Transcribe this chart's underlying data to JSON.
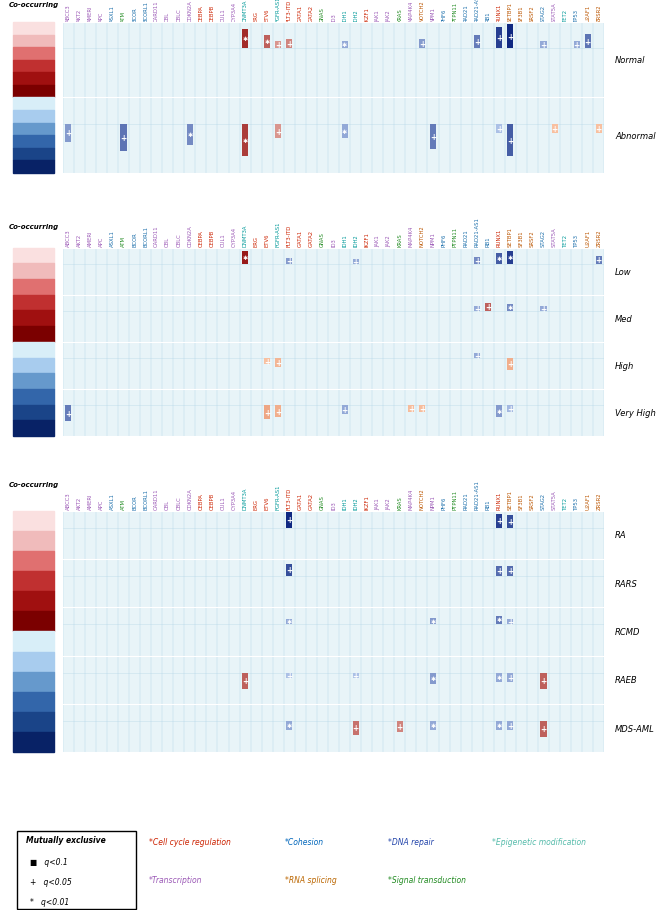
{
  "genes": [
    "ABCC3",
    "AKT2",
    "AMERI",
    "APC",
    "ASXL1",
    "ATM",
    "BCOR",
    "BCORL1",
    "CARD11",
    "CBL",
    "CBLC",
    "CDKN2A",
    "CEBPA",
    "CEBPB",
    "CUL1",
    "CYP3A4",
    "DNMT3A",
    "ERG",
    "ETV6",
    "FGFR-AS1",
    "FLT3-ITD",
    "GATA1",
    "GATA2",
    "GNAS",
    "ID3",
    "IDH1",
    "IDH2",
    "IKZF1",
    "JAK1",
    "JAK2",
    "KRAS",
    "MAP4K4",
    "NOTCH2",
    "NPM1",
    "PHF6",
    "PTPN11",
    "RAD21",
    "RAD21-AS1",
    "RB1",
    "RUNX1",
    "SETBP1",
    "SF3B1",
    "SRSF2",
    "STAG2",
    "STAT5A",
    "TET2",
    "TP53",
    "U2AF1",
    "ZRSR2"
  ],
  "gene_colors": [
    "#9B59B6",
    "#9B59B6",
    "#9B59B6",
    "#9B59B6",
    "#1A6EAA",
    "#228B22",
    "#1A6EAA",
    "#1A6EAA",
    "#9B59B6",
    "#9B59B6",
    "#9B59B6",
    "#9B59B6",
    "#CC2200",
    "#CC2200",
    "#9B59B6",
    "#9B59B6",
    "#009999",
    "#CC2200",
    "#CC2200",
    "#009999",
    "#CC2200",
    "#CC2200",
    "#CC2200",
    "#228B22",
    "#9B59B6",
    "#009999",
    "#009999",
    "#CC2200",
    "#9B59B6",
    "#9B59B6",
    "#228B22",
    "#9B59B6",
    "#BB5500",
    "#9B59B6",
    "#1A6EAA",
    "#228B22",
    "#1A6EAA",
    "#1A6EAA",
    "#1A6EAA",
    "#CC2200",
    "#BB5500",
    "#BB5500",
    "#BB5500",
    "#1A6EAA",
    "#9B59B6",
    "#009999",
    "#1A6EAA",
    "#BB5500",
    "#BB5500"
  ],
  "panel_a": {
    "rows": [
      "Normal",
      "Abnormal"
    ],
    "data": {
      "Normal": {
        "DNMT3A": {
          "val": 20,
          "type": "red",
          "marker": "*"
        },
        "ETV6": {
          "val": 14,
          "type": "red",
          "marker": "*"
        },
        "FGFR-AS1": {
          "val": 8,
          "type": "red",
          "marker": "+"
        },
        "FLT3-ITD": {
          "val": 10,
          "type": "red",
          "marker": "+"
        },
        "IDH1": {
          "val": 8,
          "type": "blue",
          "marker": "*"
        },
        "NOTCH2": {
          "val": 10,
          "type": "blue",
          "marker": "+"
        },
        "RAD21-AS1": {
          "val": 14,
          "type": "blue",
          "marker": "+"
        },
        "RUNX1": {
          "val": 22,
          "type": "blue",
          "marker": "+"
        },
        "SETBP1": {
          "val": 25,
          "type": "blue",
          "marker": "+"
        },
        "STAG2": {
          "val": 8,
          "type": "blue",
          "marker": "+"
        },
        "TP53": {
          "val": 8,
          "type": "blue",
          "marker": "+"
        },
        "U2AF1": {
          "val": 15,
          "type": "blue",
          "marker": "+"
        }
      },
      "Abnormal": {
        "ABCC3": {
          "val": -10,
          "type": "blue",
          "marker": "+"
        },
        "ATM": {
          "val": -15,
          "type": "blue",
          "marker": "+"
        },
        "CDKN2A": {
          "val": -12,
          "type": "blue",
          "marker": "*"
        },
        "DNMT3A": {
          "val": -18,
          "type": "red",
          "marker": "*"
        },
        "FGFR-AS1": {
          "val": -8,
          "type": "red",
          "marker": "+"
        },
        "IDH1": {
          "val": -8,
          "type": "blue",
          "marker": "*"
        },
        "NPM1": {
          "val": -14,
          "type": "blue",
          "marker": "+"
        },
        "RUNX1": {
          "val": -5,
          "type": "blue",
          "marker": "+"
        },
        "SETBP1": {
          "val": -18,
          "type": "blue",
          "marker": "+"
        },
        "STAT5A": {
          "val": -5,
          "type": "salmon",
          "marker": "+"
        },
        "ZRSR2": {
          "val": -5,
          "type": "salmon",
          "marker": "+"
        }
      }
    }
  },
  "panel_b": {
    "rows": [
      "Low",
      "Med",
      "High",
      "Very High"
    ],
    "data": {
      "Low": {
        "DNMT3A": {
          "val": 22,
          "type": "red",
          "marker": "*"
        },
        "FLT3-ITD": {
          "val": 10,
          "type": "blue",
          "marker": "+"
        },
        "IDH2": {
          "val": 8,
          "type": "blue",
          "marker": "+"
        },
        "RAD21-AS1": {
          "val": 12,
          "type": "blue",
          "marker": "+"
        },
        "RUNX1": {
          "val": 18,
          "type": "blue",
          "marker": "*"
        },
        "SETBP1": {
          "val": 22,
          "type": "blue",
          "marker": "*"
        },
        "ZRSR2": {
          "val": 14,
          "type": "blue",
          "marker": "+"
        }
      },
      "Med": {
        "RAD21-AS1": {
          "val": 8,
          "type": "blue",
          "marker": "+"
        },
        "RB1": {
          "val": 14,
          "type": "red",
          "marker": "+"
        },
        "SETBP1": {
          "val": 12,
          "type": "blue",
          "marker": "*"
        },
        "STAG2": {
          "val": 8,
          "type": "blue",
          "marker": "+"
        }
      },
      "High": {
        "ETV6": {
          "val": -5,
          "type": "salmon",
          "marker": "+"
        },
        "FGFR-AS1": {
          "val": -8,
          "type": "salmon",
          "marker": "+"
        },
        "RAD21-AS1": {
          "val": 8,
          "type": "blue",
          "marker": "+"
        },
        "SETBP1": {
          "val": -10,
          "type": "salmon",
          "marker": "+"
        }
      },
      "Very High": {
        "ABCC3": {
          "val": -14,
          "type": "blue",
          "marker": "+"
        },
        "ETV6": {
          "val": -12,
          "type": "salmon",
          "marker": "+"
        },
        "FGFR-AS1": {
          "val": -10,
          "type": "salmon",
          "marker": "+"
        },
        "IDH1": {
          "val": -8,
          "type": "blue",
          "marker": "+"
        },
        "MAP4K4": {
          "val": -6,
          "type": "salmon",
          "marker": "+"
        },
        "NOTCH2": {
          "val": -6,
          "type": "salmon",
          "marker": "+"
        },
        "RUNX1": {
          "val": -10,
          "type": "blue",
          "marker": "*"
        },
        "SETBP1": {
          "val": -6,
          "type": "blue",
          "marker": "+"
        }
      }
    }
  },
  "panel_c": {
    "rows": [
      "RA",
      "RARS",
      "RCMD",
      "RAEB",
      "MDS-AML"
    ],
    "data": {
      "RA": {
        "FLT3-ITD": {
          "val": 25,
          "type": "blue",
          "marker": "+"
        },
        "RUNX1": {
          "val": 22,
          "type": "blue",
          "marker": "+"
        },
        "SETBP1": {
          "val": 20,
          "type": "blue",
          "marker": "+"
        }
      },
      "RARS": {
        "FLT3-ITD": {
          "val": 20,
          "type": "blue",
          "marker": "+"
        },
        "RUNX1": {
          "val": 16,
          "type": "blue",
          "marker": "+"
        },
        "SETBP1": {
          "val": 16,
          "type": "blue",
          "marker": "+"
        }
      },
      "RCMD": {
        "FLT3-ITD": {
          "val": 8,
          "type": "blue",
          "marker": "*"
        },
        "NPM1": {
          "val": 10,
          "type": "blue",
          "marker": "*"
        },
        "RUNX1": {
          "val": 14,
          "type": "blue",
          "marker": "*"
        },
        "SETBP1": {
          "val": 8,
          "type": "blue",
          "marker": "+"
        }
      },
      "RAEB": {
        "DNMT3A": {
          "val": -14,
          "type": "red",
          "marker": "+"
        },
        "FLT3-ITD": {
          "val": -5,
          "type": "blue",
          "marker": "+"
        },
        "IDH2": {
          "val": -5,
          "type": "blue",
          "marker": "+"
        },
        "NPM1": {
          "val": -10,
          "type": "blue",
          "marker": "*"
        },
        "RUNX1": {
          "val": -8,
          "type": "blue",
          "marker": "*"
        },
        "STAG2": {
          "val": -14,
          "type": "red",
          "marker": "+"
        },
        "SETBP1": {
          "val": -8,
          "type": "blue",
          "marker": "+"
        }
      },
      "MDS-AML": {
        "FLT3-ITD": {
          "val": -8,
          "type": "blue",
          "marker": "*"
        },
        "IDH2": {
          "val": -12,
          "type": "red",
          "marker": "+"
        },
        "KRAS": {
          "val": -10,
          "type": "red",
          "marker": "+"
        },
        "NPM1": {
          "val": -8,
          "type": "blue",
          "marker": "*"
        },
        "RUNX1": {
          "val": -8,
          "type": "blue",
          "marker": "*"
        },
        "SETBP1": {
          "val": -8,
          "type": "blue",
          "marker": "+"
        },
        "STAG2": {
          "val": -14,
          "type": "red",
          "marker": "+"
        }
      }
    }
  },
  "background": "#E8F4F8",
  "grid_color": "#B8D8E8"
}
